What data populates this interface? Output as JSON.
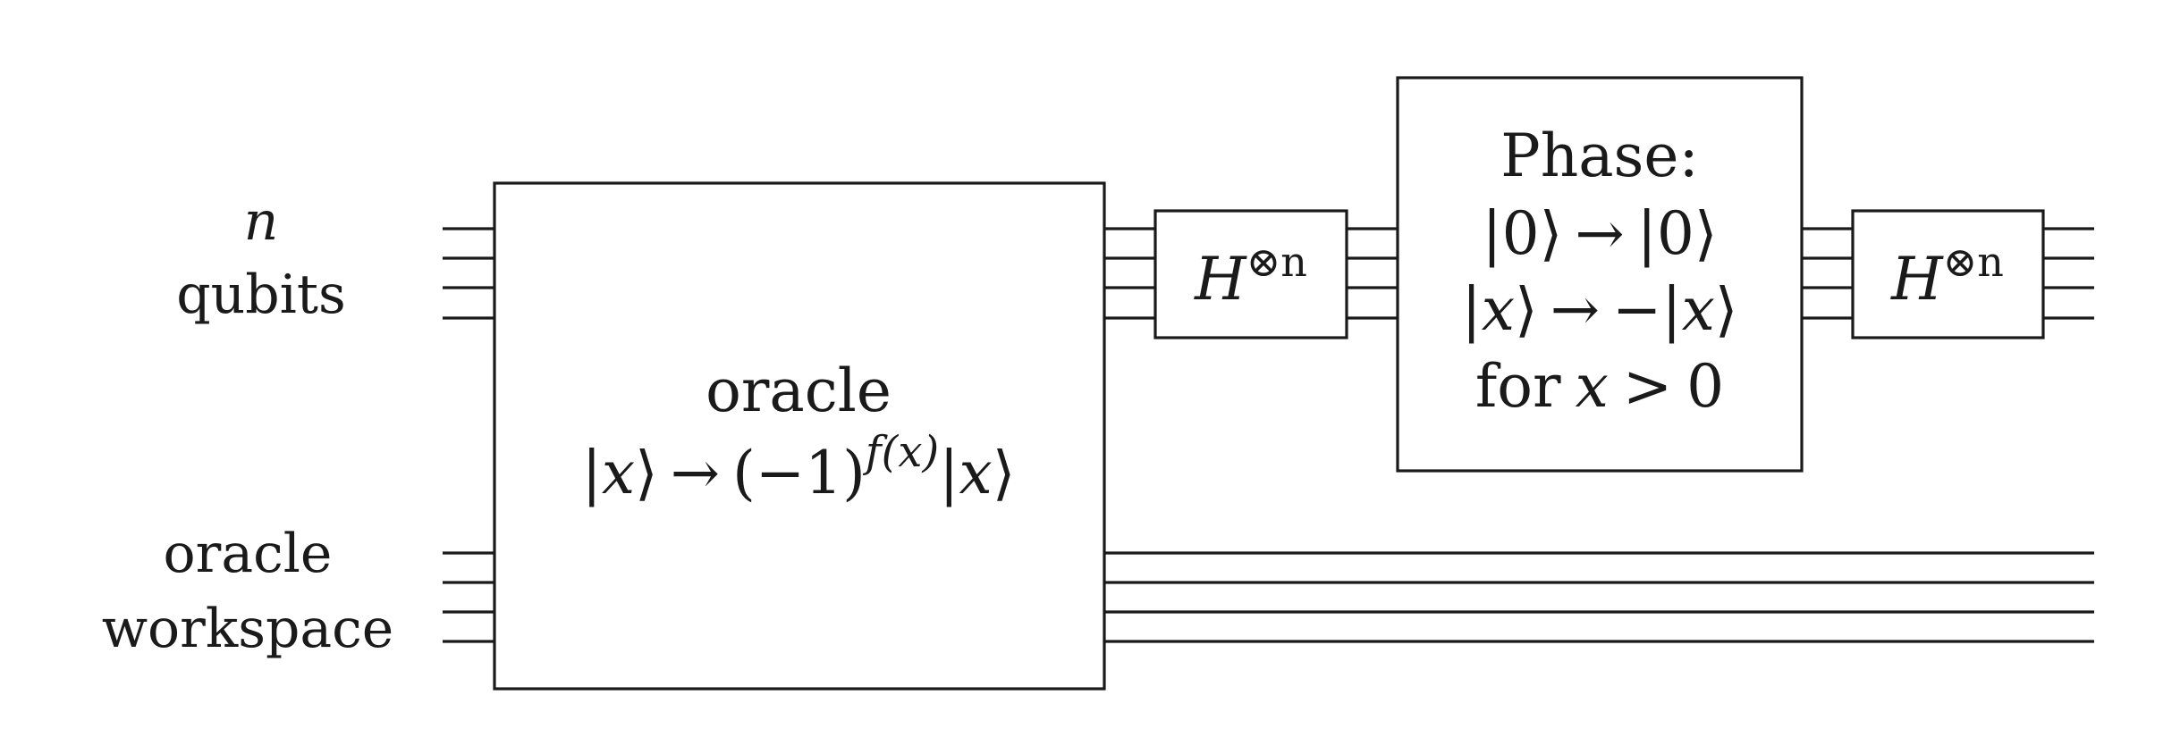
{
  "labels": {
    "register_top_var": "n",
    "register_top_word": "qubits",
    "register_bottom_line1": "oracle",
    "register_bottom_line2": "workspace"
  },
  "oracle": {
    "title": "oracle",
    "ket_open": "|",
    "x": "x",
    "ket_close": "⟩",
    "arrow": "→",
    "neg_one": "(−1)",
    "exponent": "f(x)"
  },
  "hadamard": {
    "symbol": "H",
    "power": "⊗n"
  },
  "phase": {
    "title": "Phase:",
    "zero": "0",
    "minus": "−",
    "for_word": "for",
    "gt": ">",
    "zero_number": "0"
  }
}
